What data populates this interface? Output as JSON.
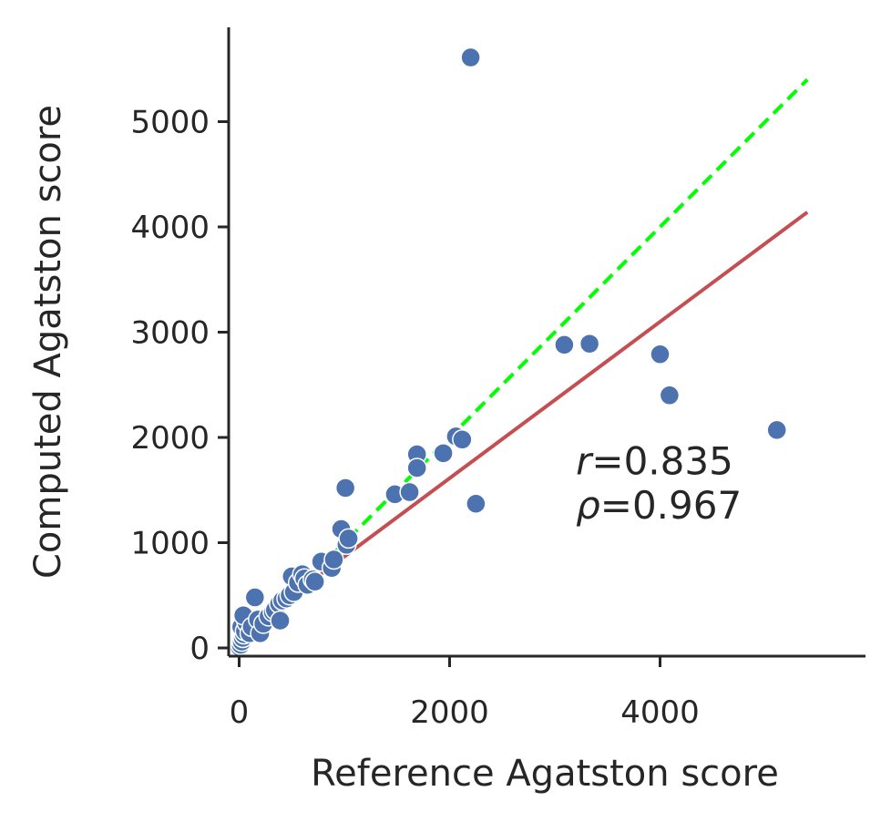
{
  "chart_data": {
    "type": "scatter",
    "xlabel": "Reference Agatston score",
    "ylabel": "Computed Agatston score",
    "xlim": [
      -80,
      5900
    ],
    "ylim": [
      -100,
      5900
    ],
    "x_ticks": [
      0,
      2000,
      4000
    ],
    "y_ticks": [
      0,
      1000,
      2000,
      3000,
      4000,
      5000
    ],
    "grid": false,
    "colors": {
      "points": "#4c72b0",
      "fit_line": "#c44e52",
      "identity_line": "#00ff00",
      "axes": "#262626"
    },
    "points": [
      {
        "x": 5,
        "y": 10
      },
      {
        "x": 15,
        "y": 30
      },
      {
        "x": 25,
        "y": 60
      },
      {
        "x": 35,
        "y": 95
      },
      {
        "x": 45,
        "y": 130
      },
      {
        "x": 20,
        "y": 200
      },
      {
        "x": 55,
        "y": 160
      },
      {
        "x": 70,
        "y": 240
      },
      {
        "x": 40,
        "y": 310
      },
      {
        "x": 100,
        "y": 140
      },
      {
        "x": 120,
        "y": 200
      },
      {
        "x": 150,
        "y": 480
      },
      {
        "x": 180,
        "y": 270
      },
      {
        "x": 200,
        "y": 140
      },
      {
        "x": 230,
        "y": 230
      },
      {
        "x": 280,
        "y": 300
      },
      {
        "x": 320,
        "y": 340
      },
      {
        "x": 340,
        "y": 360
      },
      {
        "x": 380,
        "y": 420
      },
      {
        "x": 390,
        "y": 260
      },
      {
        "x": 410,
        "y": 450
      },
      {
        "x": 450,
        "y": 470
      },
      {
        "x": 480,
        "y": 500
      },
      {
        "x": 500,
        "y": 680
      },
      {
        "x": 520,
        "y": 530
      },
      {
        "x": 560,
        "y": 620
      },
      {
        "x": 600,
        "y": 700
      },
      {
        "x": 620,
        "y": 660
      },
      {
        "x": 650,
        "y": 600
      },
      {
        "x": 700,
        "y": 650
      },
      {
        "x": 720,
        "y": 630
      },
      {
        "x": 780,
        "y": 820
      },
      {
        "x": 880,
        "y": 760
      },
      {
        "x": 900,
        "y": 840
      },
      {
        "x": 970,
        "y": 1130
      },
      {
        "x": 1010,
        "y": 1520
      },
      {
        "x": 1020,
        "y": 980
      },
      {
        "x": 1040,
        "y": 1040
      },
      {
        "x": 1480,
        "y": 1460
      },
      {
        "x": 1620,
        "y": 1480
      },
      {
        "x": 1690,
        "y": 1840
      },
      {
        "x": 1690,
        "y": 1710
      },
      {
        "x": 1940,
        "y": 1850
      },
      {
        "x": 2060,
        "y": 2010
      },
      {
        "x": 2120,
        "y": 1980
      },
      {
        "x": 2200,
        "y": 5610
      },
      {
        "x": 2250,
        "y": 1370
      },
      {
        "x": 3090,
        "y": 2880
      },
      {
        "x": 3330,
        "y": 2890
      },
      {
        "x": 4000,
        "y": 2790
      },
      {
        "x": 4090,
        "y": 2400
      },
      {
        "x": 5110,
        "y": 2070
      }
    ],
    "fit_line": {
      "x": [
        -40,
        5400
      ],
      "y": [
        95,
        4140
      ]
    },
    "identity_line": {
      "x": [
        -40,
        5400
      ],
      "y": [
        -40,
        5400
      ]
    },
    "annotations": [
      {
        "symbol": "r",
        "text": "=0.835",
        "x": 3200,
        "y": 1650
      },
      {
        "symbol": "ρ",
        "text": "=0.967",
        "x": 3200,
        "y": 1230
      }
    ]
  }
}
